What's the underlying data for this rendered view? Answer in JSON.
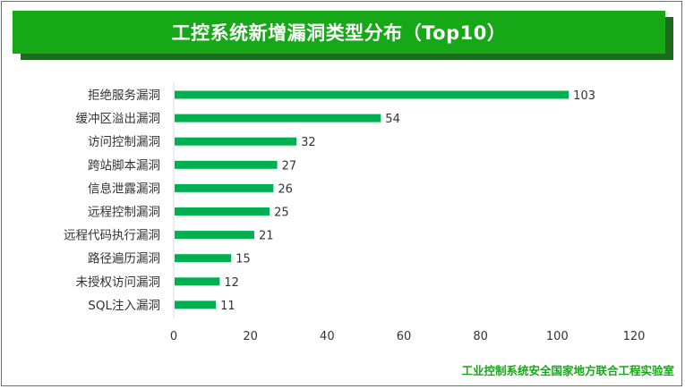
{
  "title": "工控系统新增漏洞类型分布（Top10）",
  "footer": "工业控制系统安全国家地方联合工程实验室",
  "colors": {
    "title_bg": "#16a816",
    "title_shadow": "#1d6a1d",
    "bar": "#00b050",
    "footer_text": "#17a817"
  },
  "chart_data": {
    "type": "bar",
    "orientation": "horizontal",
    "title": "工控系统新增漏洞类型分布（Top10）",
    "xlabel": "",
    "ylabel": "",
    "xlim": [
      0,
      120
    ],
    "x_ticks": [
      0,
      20,
      40,
      60,
      80,
      100,
      120
    ],
    "grid": false,
    "categories": [
      "拒绝服务漏洞",
      "缓冲区溢出漏洞",
      "访问控制漏洞",
      "跨站脚本漏洞",
      "信息泄露漏洞",
      "远程控制漏洞",
      "远程代码执行漏洞",
      "路径遍历漏洞",
      "未授权访问漏洞",
      "SQL注入漏洞"
    ],
    "values": [
      103,
      54,
      32,
      27,
      26,
      25,
      21,
      15,
      12,
      11
    ]
  }
}
